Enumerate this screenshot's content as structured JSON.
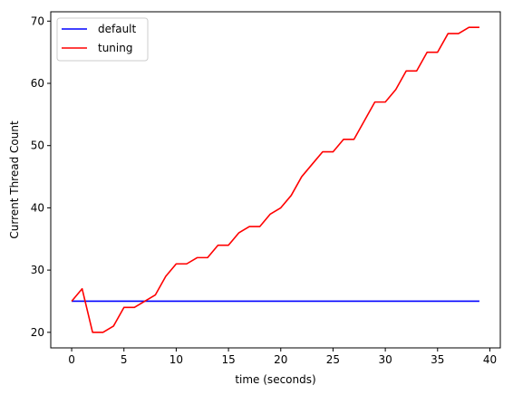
{
  "chart_data": {
    "type": "line",
    "xlabel": "time (seconds)",
    "ylabel": "Current Thread Count",
    "xlim": [
      -2,
      41
    ],
    "ylim": [
      17.5,
      71.5
    ],
    "xticks": [
      0,
      5,
      10,
      15,
      20,
      25,
      30,
      35,
      40
    ],
    "yticks": [
      20,
      30,
      40,
      50,
      60,
      70
    ],
    "grid": false,
    "legend_position": "top-left",
    "series": [
      {
        "name": "default",
        "color": "#0000ff",
        "x": [
          0,
          1,
          2,
          3,
          4,
          5,
          6,
          7,
          8,
          9,
          10,
          11,
          12,
          13,
          14,
          15,
          16,
          17,
          18,
          19,
          20,
          21,
          22,
          23,
          24,
          25,
          26,
          27,
          28,
          29,
          30,
          31,
          32,
          33,
          34,
          35,
          36,
          37,
          38,
          39
        ],
        "y": [
          25,
          25,
          25,
          25,
          25,
          25,
          25,
          25,
          25,
          25,
          25,
          25,
          25,
          25,
          25,
          25,
          25,
          25,
          25,
          25,
          25,
          25,
          25,
          25,
          25,
          25,
          25,
          25,
          25,
          25,
          25,
          25,
          25,
          25,
          25,
          25,
          25,
          25,
          25,
          25
        ]
      },
      {
        "name": "tuning",
        "color": "#ff0000",
        "x": [
          0,
          1,
          2,
          3,
          4,
          5,
          6,
          7,
          8,
          9,
          10,
          11,
          12,
          13,
          14,
          15,
          16,
          17,
          18,
          19,
          20,
          21,
          22,
          23,
          24,
          25,
          26,
          27,
          28,
          29,
          30,
          31,
          32,
          33,
          34,
          35,
          36,
          37,
          38,
          39
        ],
        "y": [
          25,
          27,
          20,
          20,
          21,
          24,
          24,
          25,
          26,
          29,
          31,
          31,
          32,
          32,
          34,
          34,
          36,
          37,
          37,
          39,
          40,
          42,
          45,
          47,
          49,
          49,
          51,
          51,
          54,
          57,
          57,
          59,
          62,
          62,
          65,
          65,
          68,
          68,
          69,
          69
        ]
      }
    ]
  }
}
